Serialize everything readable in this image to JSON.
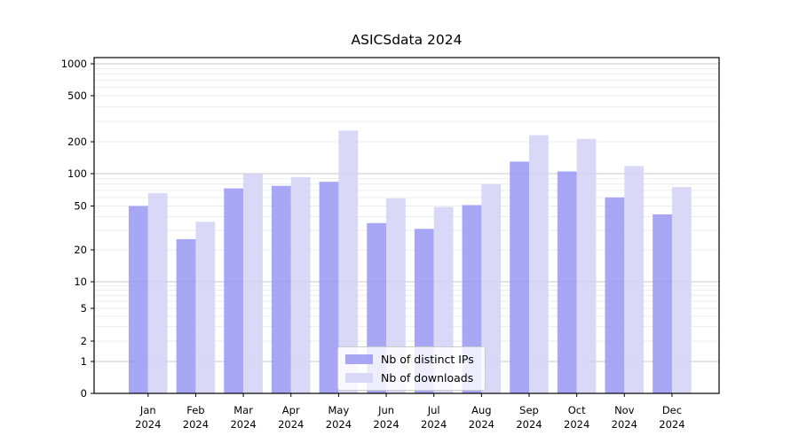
{
  "chart_data": {
    "type": "bar",
    "title": "ASICSdata 2024",
    "categories": [
      "Jan 2024",
      "Feb 2024",
      "Mar 2024",
      "Apr 2024",
      "May 2024",
      "Jun 2024",
      "Jul 2024",
      "Aug 2024",
      "Sep 2024",
      "Oct 2024",
      "Nov 2024",
      "Dec 2024"
    ],
    "series": [
      {
        "name": "Nb of distinct IPs",
        "color": "#9898f3",
        "values": [
          50,
          25,
          73,
          77,
          84,
          35,
          31,
          51,
          130,
          105,
          60,
          42
        ]
      },
      {
        "name": "Nb of downloads",
        "color": "#d2d2f6",
        "values": [
          66,
          36,
          100,
          93,
          250,
          59,
          49,
          80,
          228,
          212,
          118,
          75
        ]
      }
    ],
    "y_ticks": [
      1000,
      500,
      200,
      100,
      50,
      20,
      10,
      5,
      2,
      1,
      0
    ],
    "y_scale": "symlog",
    "ylim": [
      0,
      1000
    ],
    "xlabel": "",
    "ylabel": "",
    "grid": true,
    "legend_position": "lower center"
  }
}
